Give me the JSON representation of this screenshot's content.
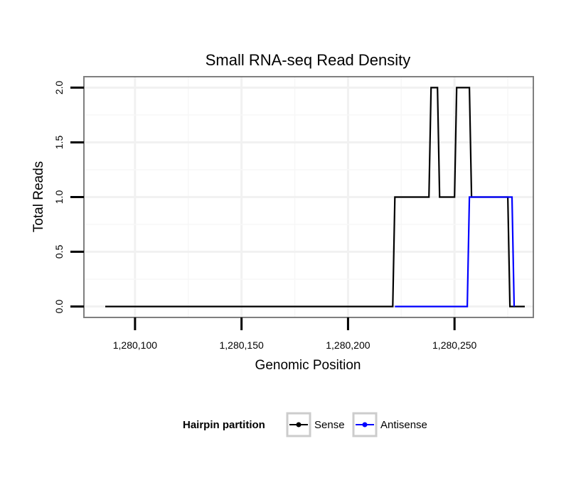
{
  "chart_data": {
    "type": "line",
    "title": "Small RNA-seq Read Density",
    "xlabel": "Genomic Position",
    "ylabel": "Total Reads",
    "xlim": [
      1280076,
      1280287
    ],
    "ylim": [
      -0.1,
      2.1
    ],
    "x_ticks": [
      1280100,
      1280150,
      1280200,
      1280250
    ],
    "x_tick_labels": [
      "1,280,100",
      "1,280,150",
      "1,280,200",
      "1,280,250"
    ],
    "y_ticks": [
      0.0,
      0.5,
      1.0,
      1.5,
      2.0
    ],
    "y_tick_labels": [
      "0.0",
      "0.5",
      "1.0",
      "1.5",
      "2.0"
    ],
    "grid": true,
    "legend": {
      "title": "Hairpin partition",
      "placement": "bottom"
    },
    "series": [
      {
        "name": "Sense",
        "color": "#000000",
        "x": [
          1280086,
          1280221,
          1280222,
          1280238,
          1280239,
          1280242,
          1280243,
          1280250,
          1280251,
          1280257,
          1280258,
          1280275,
          1280276,
          1280283
        ],
        "y": [
          0,
          0,
          1,
          1,
          2,
          2,
          1,
          1,
          2,
          2,
          1,
          1,
          0,
          0
        ]
      },
      {
        "name": "Antisense",
        "color": "#0000ff",
        "x": [
          1280222,
          1280256,
          1280257,
          1280277,
          1280278
        ],
        "y": [
          0,
          0,
          1,
          1,
          0
        ]
      }
    ]
  }
}
